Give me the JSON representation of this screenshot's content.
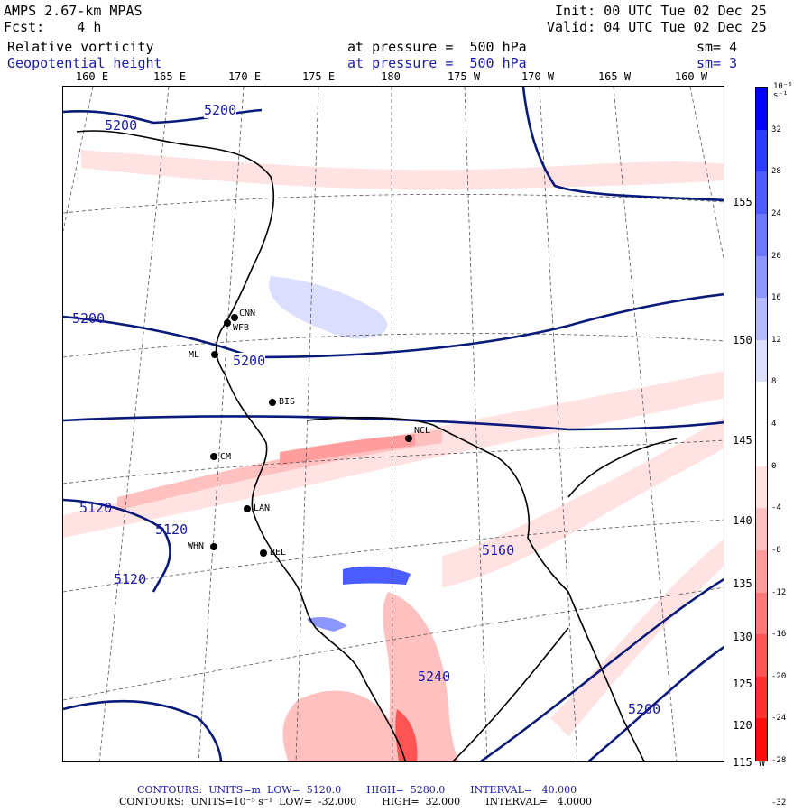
{
  "header": {
    "model": "AMPS 2.67-km MPAS",
    "forecast": "Fcst:    4 h",
    "init": "Init: 00 UTC Tue 02 Dec 25",
    "valid": "Valid: 04 UTC Tue 02 Dec 25",
    "field1_name": "Relative vorticity",
    "field1_level": "at pressure =  500 hPa",
    "field1_smooth": "sm= 4",
    "field2_name": "Geopotential height",
    "field2_level": "at pressure =  500 hPa",
    "field2_smooth": "sm= 3"
  },
  "longitude_labels": [
    "160 E",
    "165 E",
    "170 E",
    "175 E",
    "180",
    "175 W",
    "170 W",
    "165 W",
    "160 W"
  ],
  "latitude_labels": [
    "155 W",
    "150 W",
    "145 W",
    "140 W",
    "135 W",
    "130 W",
    "125 W",
    "120 W",
    "115 W"
  ],
  "stations": [
    "CNN",
    "WFB",
    "ML",
    "BIS",
    "NCL",
    "CM",
    "LAN",
    "WHN",
    "BEL"
  ],
  "height_contour_labels": [
    "5200",
    "5200",
    "5200",
    "5200",
    "5120",
    "5120",
    "5120",
    "5160",
    "5200",
    "5240"
  ],
  "colorbar": {
    "unit": "10⁻⁵ s⁻¹",
    "ticks": [
      "32",
      "28",
      "24",
      "20",
      "16",
      "12",
      "8",
      "4",
      "0",
      "-4",
      "-8",
      "-12",
      "-16",
      "-20",
      "-24",
      "-28",
      "-32"
    ],
    "colors": [
      "#0000ff",
      "#2a3cff",
      "#4a5cff",
      "#6a78ff",
      "#8c96ff",
      "#b4baff",
      "#dcdeff",
      "#ffffff",
      "#ffffff",
      "#ffe2e2",
      "#ffc0c0",
      "#ff9c9c",
      "#ff7878",
      "#ff5454",
      "#ff3030",
      "#ff0c0c"
    ]
  },
  "footer": {
    "height_contours": "CONTOURS:  UNITS=m  LOW=  5120.0        HIGH=  5280.0        INTERVAL=   40.000",
    "vort_contours": "CONTOURS:  UNITS=10⁻⁵ s⁻¹  LOW=  -32.000        HIGH=  32.000        INTERVAL=   4.0000"
  }
}
